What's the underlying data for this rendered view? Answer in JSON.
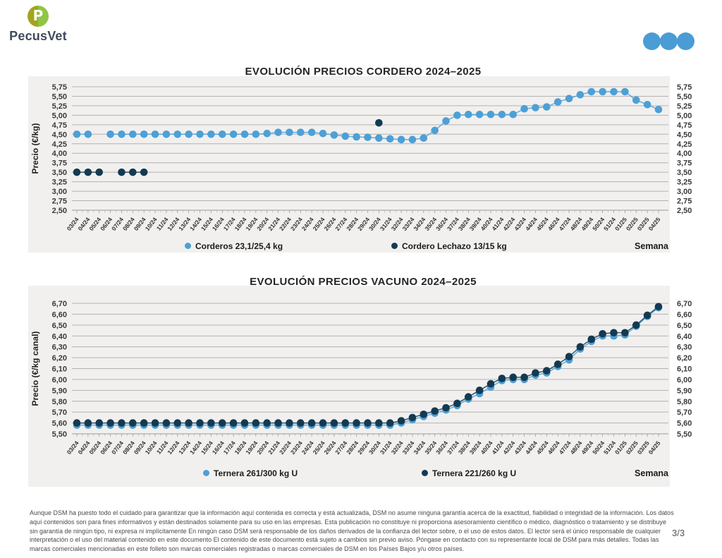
{
  "header": {
    "brand": "PecusVet",
    "logo_letter": "P",
    "pagination_dots": 3
  },
  "theme": {
    "accent_blue": "#4DA0D6",
    "navy": "#143A52",
    "logo_olive": "#A2A51C",
    "logo_lime": "#8FC643",
    "brand_text": "#3F4B5C",
    "panel_bg": "#F1F0EF",
    "gridline": "#B4B2B0",
    "axis": "#9A9A9A"
  },
  "chart_data": [
    {
      "type": "scatter",
      "title": "EVOLUCIÓN PRECIOS CORDERO 2024–2025",
      "xlabel": "Semana",
      "ylabel": "Precio (€/kg)",
      "ylim": [
        2.5,
        5.75
      ],
      "yticks": [
        "5,75",
        "5,50",
        "5,25",
        "5,00",
        "4,75",
        "4,50",
        "4,25",
        "4,00",
        "3,75",
        "3,50",
        "3,25",
        "3,00",
        "2,75",
        "2,50"
      ],
      "grid": true,
      "legend_position": "bottom",
      "categories": [
        "03/24",
        "04/24",
        "05/24",
        "06/24",
        "07/24",
        "08/24",
        "09/24",
        "10/24",
        "11/24",
        "12/24",
        "13/24",
        "14/24",
        "15/24",
        "16/24",
        "17/24",
        "18/24",
        "19/24",
        "20/24",
        "21/24",
        "22/24",
        "23/24",
        "24/24",
        "25/24",
        "26/24",
        "27/24",
        "28/24",
        "29/24",
        "30/24",
        "31/24",
        "32/24",
        "33/24",
        "34/24",
        "35/24",
        "36/24",
        "37/24",
        "38/24",
        "39/24",
        "40/24",
        "41/24",
        "42/24",
        "43/24",
        "44/24",
        "45/24",
        "46/24",
        "47/24",
        "48/24",
        "49/24",
        "50/24",
        "51/24",
        "01/25",
        "02/25",
        "03/25",
        "04/25"
      ],
      "series": [
        {
          "name": "Corderos 23,1/25,4 kg",
          "color": "#4DA0D6",
          "values": [
            4.5,
            4.5,
            null,
            4.5,
            4.5,
            4.5,
            4.5,
            4.5,
            4.5,
            4.5,
            4.5,
            4.5,
            4.5,
            4.5,
            4.5,
            4.5,
            4.5,
            4.52,
            4.55,
            4.55,
            4.55,
            4.55,
            4.52,
            4.48,
            4.45,
            4.43,
            4.42,
            4.4,
            4.38,
            4.36,
            4.36,
            4.4,
            4.6,
            4.85,
            5.0,
            5.02,
            5.02,
            5.02,
            5.02,
            5.02,
            5.17,
            5.2,
            5.22,
            5.35,
            5.44,
            5.54,
            5.62,
            5.62,
            5.62,
            5.62,
            5.4,
            5.28,
            5.15
          ]
        },
        {
          "name": "Cordero Lechazo 13/15 kg",
          "color": "#143A52",
          "values": [
            3.5,
            3.5,
            3.5,
            null,
            3.5,
            3.5,
            3.5,
            null,
            null,
            null,
            null,
            null,
            null,
            null,
            null,
            null,
            null,
            null,
            null,
            null,
            null,
            null,
            null,
            null,
            null,
            null,
            null,
            4.8,
            null,
            null,
            null,
            null,
            null,
            null,
            null,
            null,
            null,
            null,
            null,
            null,
            null,
            null,
            null,
            null,
            null,
            null,
            null,
            null,
            null,
            null,
            null,
            null,
            null
          ]
        }
      ]
    },
    {
      "type": "scatter",
      "title": "EVOLUCIÓN PRECIOS VACUNO 2024–2025",
      "xlabel": "Semana",
      "ylabel": "Precio (€/kg canal)",
      "ylim": [
        5.5,
        6.7
      ],
      "yticks": [
        "6,70",
        "6,60",
        "6,50",
        "6,40",
        "6,30",
        "6,20",
        "6,10",
        "6,00",
        "5,90",
        "5,80",
        "5,70",
        "5,60",
        "5,50"
      ],
      "grid": true,
      "legend_position": "bottom",
      "categories": [
        "03/24",
        "04/24",
        "05/24",
        "06/24",
        "07/24",
        "08/24",
        "09/24",
        "10/24",
        "11/24",
        "12/24",
        "13/24",
        "14/24",
        "15/24",
        "16/24",
        "17/24",
        "18/24",
        "19/24",
        "20/24",
        "21/24",
        "22/24",
        "23/24",
        "24/24",
        "25/24",
        "26/24",
        "27/24",
        "28/24",
        "29/24",
        "30/24",
        "31/24",
        "32/24",
        "33/24",
        "34/24",
        "35/24",
        "36/24",
        "37/24",
        "38/24",
        "39/24",
        "40/24",
        "41/24",
        "42/24",
        "43/24",
        "44/24",
        "45/24",
        "46/24",
        "47/24",
        "48/24",
        "49/24",
        "50/24",
        "51/24",
        "01/25",
        "02/25",
        "03/25",
        "04/25"
      ],
      "series": [
        {
          "name": "Ternera 261/300 kg U",
          "color": "#4DA0D6",
          "values": [
            5.58,
            5.58,
            5.58,
            5.58,
            5.58,
            5.58,
            5.58,
            5.58,
            5.58,
            5.58,
            5.58,
            5.58,
            5.58,
            5.58,
            5.58,
            5.58,
            5.58,
            5.58,
            5.58,
            5.58,
            5.58,
            5.58,
            5.58,
            5.58,
            5.58,
            5.58,
            5.58,
            5.58,
            5.58,
            5.6,
            5.63,
            5.66,
            5.69,
            5.72,
            5.76,
            5.82,
            5.87,
            5.93,
            5.99,
            6.0,
            6.0,
            6.04,
            6.06,
            6.12,
            6.18,
            6.28,
            6.35,
            6.4,
            6.4,
            6.41,
            6.49,
            6.58,
            6.66
          ]
        },
        {
          "name": "Ternera 221/260 kg U",
          "color": "#143A52",
          "values": [
            5.6,
            5.6,
            5.6,
            5.6,
            5.6,
            5.6,
            5.6,
            5.6,
            5.6,
            5.6,
            5.6,
            5.6,
            5.6,
            5.6,
            5.6,
            5.6,
            5.6,
            5.6,
            5.6,
            5.6,
            5.6,
            5.6,
            5.6,
            5.6,
            5.6,
            5.6,
            5.6,
            5.6,
            5.6,
            5.62,
            5.65,
            5.68,
            5.71,
            5.74,
            5.78,
            5.84,
            5.9,
            5.96,
            6.01,
            6.02,
            6.02,
            6.06,
            6.08,
            6.14,
            6.21,
            6.3,
            6.37,
            6.42,
            6.43,
            6.43,
            6.5,
            6.59,
            6.67
          ]
        }
      ]
    }
  ],
  "footer": {
    "disclaimer": "Aunque DSM ha puesto todo el cuidado para garantizar que la información aquí contenida es correcta y está actualizada, DSM no asume ninguna garantía acerca de la exactitud, fiabilidad o integridad de la información. Los datos aquí contenidos son para fines informativos y están destinados solamente para su uso en las empresas. Esta publicación no constituye ni proporciona asesoramiento científico o médico, diagnóstico o tratamiento y se distribuye sin garantía de ningún tipo, ni expresa ni implícitamente En ningún caso DSM será responsable de los daños derivados de la confianza del lector sobre, o el uso de estos datos. El lector será el único responsable de cualquier interpretación o el uso del material contenido en este documento El contenido de este documento está sujeto a cambios sin previo aviso. Póngase en contacto con su representante local de DSM para más detalles. Todas las marcas comerciales mencionadas en este folleto son marcas comerciales registradas o marcas comerciales de DSM en los Países Bajos y/u otros países.",
    "page_number": "3/3"
  }
}
